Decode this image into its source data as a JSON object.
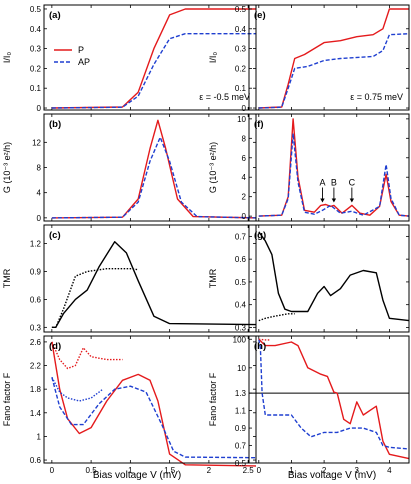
{
  "x_axis_title": "Bias voltage V (mV)",
  "chart_data": [
    {
      "type": "line",
      "panel": "(a)",
      "ylabel": "I/I₀",
      "annotation": "ε = -0.5 meV",
      "xlim": [
        -0.1,
        2.6
      ],
      "ylim": [
        -0.01,
        0.52
      ],
      "yticks": [
        0,
        0.1,
        0.2,
        0.3,
        0.4,
        0.5
      ],
      "xticks": [
        0,
        0.5,
        1,
        1.5,
        2,
        2.5
      ],
      "legend": [
        "P",
        "AP"
      ],
      "legend_position": "top-left",
      "series": [
        {
          "name": "P",
          "color": "#e41a1c",
          "dash": "solid",
          "points": [
            [
              0,
              0
            ],
            [
              0.9,
              0.005
            ],
            [
              1.1,
              0.08
            ],
            [
              1.3,
              0.3
            ],
            [
              1.5,
              0.47
            ],
            [
              1.7,
              0.5
            ],
            [
              2.6,
              0.5
            ]
          ]
        },
        {
          "name": "AP",
          "color": "#1f3fd0",
          "dash": "dashed",
          "points": [
            [
              0,
              0
            ],
            [
              0.9,
              0.004
            ],
            [
              1.1,
              0.06
            ],
            [
              1.3,
              0.22
            ],
            [
              1.5,
              0.35
            ],
            [
              1.7,
              0.375
            ],
            [
              2.6,
              0.375
            ]
          ]
        }
      ]
    },
    {
      "type": "line",
      "panel": "(b)",
      "ylabel": "G (10⁻³ e²/h)",
      "xlim": [
        -0.1,
        2.6
      ],
      "ylim": [
        -0.5,
        16.5
      ],
      "yticks": [
        0,
        4,
        8,
        12
      ],
      "xticks": [
        0,
        0.5,
        1,
        1.5,
        2,
        2.5
      ],
      "series": [
        {
          "color": "#e41a1c",
          "dash": "solid",
          "points": [
            [
              0,
              0
            ],
            [
              0.9,
              0.1
            ],
            [
              1.1,
              3
            ],
            [
              1.25,
              11
            ],
            [
              1.35,
              15.5
            ],
            [
              1.45,
              11
            ],
            [
              1.6,
              3
            ],
            [
              1.8,
              0.2
            ],
            [
              2.6,
              0
            ]
          ]
        },
        {
          "color": "#1f3fd0",
          "dash": "dashed",
          "points": [
            [
              0,
              0
            ],
            [
              0.9,
              0.1
            ],
            [
              1.1,
              2.5
            ],
            [
              1.25,
              9
            ],
            [
              1.38,
              12.8
            ],
            [
              1.5,
              9
            ],
            [
              1.65,
              2.5
            ],
            [
              1.85,
              0.2
            ],
            [
              2.6,
              0
            ]
          ]
        }
      ]
    },
    {
      "type": "line",
      "panel": "(c)",
      "ylabel": "TMR",
      "xlim": [
        -0.1,
        2.6
      ],
      "ylim": [
        0.25,
        1.4
      ],
      "yticks": [
        0.3,
        0.6,
        0.9,
        1.2
      ],
      "xticks": [
        0,
        0.5,
        1,
        1.5,
        2,
        2.5
      ],
      "series": [
        {
          "color": "#000000",
          "dash": "solid",
          "points": [
            [
              0,
              0.3
            ],
            [
              0.05,
              0.3
            ],
            [
              0.15,
              0.45
            ],
            [
              0.3,
              0.6
            ],
            [
              0.45,
              0.7
            ],
            [
              0.6,
              0.95
            ],
            [
              0.8,
              1.22
            ],
            [
              0.95,
              1.1
            ],
            [
              1.1,
              0.8
            ],
            [
              1.3,
              0.42
            ],
            [
              1.5,
              0.34
            ],
            [
              2.6,
              0.33
            ]
          ]
        },
        {
          "color": "#000000",
          "dash": "dotted",
          "points": [
            [
              0,
              0.3
            ],
            [
              0.05,
              0.3
            ],
            [
              0.15,
              0.5
            ],
            [
              0.3,
              0.85
            ],
            [
              0.45,
              0.9
            ],
            [
              0.7,
              0.93
            ],
            [
              1.0,
              0.93
            ],
            [
              1.1,
              0.92
            ]
          ]
        }
      ]
    },
    {
      "type": "line",
      "panel": "(d)",
      "ylabel": "Fano factor F",
      "xlim": [
        -0.1,
        2.6
      ],
      "ylim": [
        0.55,
        2.7
      ],
      "yticks": [
        0.6,
        1,
        1.4,
        1.8,
        2.2,
        2.6
      ],
      "xticks": [
        0,
        0.5,
        1,
        1.5,
        2,
        2.5
      ],
      "series": [
        {
          "color": "#e41a1c",
          "dash": "solid",
          "points": [
            [
              0,
              2.6
            ],
            [
              0.1,
              1.8
            ],
            [
              0.2,
              1.3
            ],
            [
              0.35,
              1.05
            ],
            [
              0.5,
              1.15
            ],
            [
              0.7,
              1.6
            ],
            [
              0.9,
              1.95
            ],
            [
              1.1,
              2.05
            ],
            [
              1.25,
              1.95
            ],
            [
              1.35,
              1.6
            ],
            [
              1.5,
              0.7
            ],
            [
              1.7,
              0.52
            ],
            [
              2.6,
              0.5
            ]
          ]
        },
        {
          "color": "#1f3fd0",
          "dash": "dashed",
          "points": [
            [
              0,
              2.0
            ],
            [
              0.1,
              1.5
            ],
            [
              0.25,
              1.2
            ],
            [
              0.4,
              1.2
            ],
            [
              0.6,
              1.55
            ],
            [
              0.8,
              1.8
            ],
            [
              1.0,
              1.85
            ],
            [
              1.2,
              1.75
            ],
            [
              1.4,
              1.2
            ],
            [
              1.55,
              0.75
            ],
            [
              1.7,
              0.65
            ],
            [
              2.6,
              0.64
            ]
          ]
        },
        {
          "color": "#e41a1c",
          "dash": "dotted",
          "points": [
            [
              0,
              2.6
            ],
            [
              0.1,
              2.3
            ],
            [
              0.2,
              2.15
            ],
            [
              0.3,
              2.2
            ],
            [
              0.4,
              2.5
            ],
            [
              0.5,
              2.35
            ],
            [
              0.7,
              2.3
            ],
            [
              0.9,
              2.3
            ]
          ]
        },
        {
          "color": "#1f3fd0",
          "dash": "dotted",
          "points": [
            [
              0,
              2.0
            ],
            [
              0.1,
              1.75
            ],
            [
              0.2,
              1.65
            ],
            [
              0.35,
              1.6
            ],
            [
              0.5,
              1.65
            ],
            [
              0.65,
              1.8
            ]
          ]
        }
      ]
    },
    {
      "type": "line",
      "panel": "(e)",
      "ylabel": "I/I₀",
      "annotation": "ε = 0.75 meV",
      "xlim": [
        -0.3,
        4.6
      ],
      "ylim": [
        -0.01,
        0.52
      ],
      "yticks": [
        0,
        0.1,
        0.2,
        0.3,
        0.4,
        0.5
      ],
      "xticks": [
        0,
        1,
        2,
        3,
        4
      ],
      "series": [
        {
          "color": "#e41a1c",
          "dash": "solid",
          "points": [
            [
              0,
              0
            ],
            [
              0.7,
              0.005
            ],
            [
              0.9,
              0.12
            ],
            [
              1.1,
              0.25
            ],
            [
              1.4,
              0.27
            ],
            [
              2,
              0.33
            ],
            [
              2.5,
              0.34
            ],
            [
              3.0,
              0.36
            ],
            [
              3.5,
              0.37
            ],
            [
              3.8,
              0.4
            ],
            [
              4.0,
              0.5
            ],
            [
              4.6,
              0.5
            ]
          ]
        },
        {
          "color": "#1f3fd0",
          "dash": "dashed",
          "points": [
            [
              0,
              0
            ],
            [
              0.7,
              0.004
            ],
            [
              0.9,
              0.1
            ],
            [
              1.1,
              0.2
            ],
            [
              1.5,
              0.21
            ],
            [
              2,
              0.24
            ],
            [
              2.5,
              0.25
            ],
            [
              3.5,
              0.26
            ],
            [
              3.8,
              0.29
            ],
            [
              4.0,
              0.37
            ],
            [
              4.6,
              0.375
            ]
          ]
        }
      ]
    },
    {
      "type": "line",
      "panel": "(f)",
      "ylabel": "G (10⁻³ e²/h)",
      "xlim": [
        -0.3,
        4.6
      ],
      "ylim": [
        -0.5,
        10.5
      ],
      "yticks": [
        0,
        2,
        4,
        6,
        8,
        10
      ],
      "xticks": [
        0,
        1,
        2,
        3,
        4
      ],
      "annotations": [
        "A",
        "B",
        "C"
      ],
      "series": [
        {
          "color": "#e41a1c",
          "dash": "solid",
          "points": [
            [
              0,
              0
            ],
            [
              0.7,
              0.1
            ],
            [
              0.9,
              2
            ],
            [
              1.05,
              10
            ],
            [
              1.2,
              4
            ],
            [
              1.4,
              0.6
            ],
            [
              1.7,
              0.4
            ],
            [
              1.9,
              1.1
            ],
            [
              2.05,
              1.2
            ],
            [
              2.2,
              1.0
            ],
            [
              2.3,
              1.1
            ],
            [
              2.55,
              0.3
            ],
            [
              2.85,
              1.1
            ],
            [
              3.1,
              0.3
            ],
            [
              3.4,
              0.1
            ],
            [
              3.7,
              1
            ],
            [
              3.9,
              4.3
            ],
            [
              4.05,
              1.5
            ],
            [
              4.3,
              0.1
            ],
            [
              4.6,
              0
            ]
          ]
        },
        {
          "color": "#1f3fd0",
          "dash": "dashed",
          "points": [
            [
              0,
              0
            ],
            [
              0.7,
              0.1
            ],
            [
              0.9,
              1.8
            ],
            [
              1.05,
              8.5
            ],
            [
              1.2,
              3.5
            ],
            [
              1.4,
              0.4
            ],
            [
              1.7,
              0.2
            ],
            [
              1.95,
              0.6
            ],
            [
              2.2,
              1.1
            ],
            [
              2.5,
              0.3
            ],
            [
              2.85,
              0.5
            ],
            [
              3.2,
              0.1
            ],
            [
              3.7,
              1
            ],
            [
              3.9,
              5.3
            ],
            [
              4.05,
              1.8
            ],
            [
              4.3,
              0.1
            ],
            [
              4.6,
              0
            ]
          ]
        }
      ]
    },
    {
      "type": "line",
      "panel": "(g)",
      "ylabel": "TMR",
      "xlim": [
        -0.3,
        4.6
      ],
      "ylim": [
        0.28,
        0.75
      ],
      "yticks": [
        0.3,
        0.4,
        0.5,
        0.6,
        0.7
      ],
      "xticks": [
        0,
        1,
        2,
        3,
        4
      ],
      "series": [
        {
          "color": "#000000",
          "dash": "solid",
          "points": [
            [
              0,
              0.72
            ],
            [
              0.2,
              0.68
            ],
            [
              0.4,
              0.62
            ],
            [
              0.6,
              0.45
            ],
            [
              0.8,
              0.38
            ],
            [
              1.0,
              0.37
            ],
            [
              1.5,
              0.37
            ],
            [
              1.8,
              0.45
            ],
            [
              2.0,
              0.48
            ],
            [
              2.2,
              0.44
            ],
            [
              2.5,
              0.47
            ],
            [
              2.8,
              0.53
            ],
            [
              3.2,
              0.55
            ],
            [
              3.6,
              0.54
            ],
            [
              3.8,
              0.42
            ],
            [
              4.0,
              0.34
            ],
            [
              4.6,
              0.33
            ]
          ]
        },
        {
          "color": "#000000",
          "dash": "dotted",
          "points": [
            [
              0,
              0.33
            ],
            [
              0.2,
              0.34
            ],
            [
              0.5,
              0.35
            ],
            [
              0.9,
              0.36
            ],
            [
              1.1,
              0.36
            ]
          ]
        }
      ]
    },
    {
      "type": "line",
      "panel": "(h)",
      "ylabel": "Fano factor F",
      "broken_axis": true,
      "xlim": [
        -0.3,
        4.6
      ],
      "upper_ylim": [
        1.3,
        130
      ],
      "upper_scale": "log",
      "upper_yticks": [
        1.3,
        10,
        100
      ],
      "lower_ylim": [
        0.5,
        1.3
      ],
      "lower_yticks": [
        0.5,
        0.7,
        0.9,
        1.1,
        1.3
      ],
      "xticks": [
        0,
        1,
        2,
        3,
        4
      ],
      "series": [
        {
          "color": "#e41a1c",
          "dash": "solid",
          "upper_points": [
            [
              0,
              100
            ],
            [
              0.2,
              60
            ],
            [
              0.5,
              60
            ],
            [
              1.0,
              80
            ],
            [
              1.2,
              60
            ],
            [
              1.5,
              10
            ],
            [
              1.9,
              6
            ],
            [
              2.1,
              5
            ],
            [
              2.3,
              1.4
            ],
            [
              2.4,
              1.3
            ]
          ],
          "lower_points": [
            [
              2.4,
              1.3
            ],
            [
              2.6,
              1.0
            ],
            [
              2.8,
              0.95
            ],
            [
              3.0,
              1.2
            ],
            [
              3.2,
              1.05
            ],
            [
              3.4,
              1.1
            ],
            [
              3.6,
              1.15
            ],
            [
              3.8,
              0.75
            ],
            [
              4.0,
              0.6
            ],
            [
              4.6,
              0.55
            ]
          ]
        },
        {
          "color": "#1f3fd0",
          "dash": "dashed",
          "upper_points": [
            [
              0,
              100
            ],
            [
              0.05,
              50
            ],
            [
              0.1,
              1.3
            ]
          ],
          "lower_points": [
            [
              0.1,
              1.3
            ],
            [
              0.2,
              1.05
            ],
            [
              0.5,
              1.05
            ],
            [
              1.0,
              1.05
            ],
            [
              1.3,
              0.9
            ],
            [
              1.6,
              0.8
            ],
            [
              2.0,
              0.85
            ],
            [
              2.4,
              0.85
            ],
            [
              2.8,
              0.9
            ],
            [
              3.2,
              0.9
            ],
            [
              3.6,
              0.85
            ],
            [
              3.8,
              0.7
            ],
            [
              4.0,
              0.68
            ],
            [
              4.6,
              0.66
            ]
          ]
        },
        {
          "color": "#e41a1c",
          "dash": "dotted",
          "upper_points": [
            [
              0,
              100
            ],
            [
              0.2,
              95
            ],
            [
              0.35,
              95
            ]
          ]
        }
      ]
    }
  ]
}
